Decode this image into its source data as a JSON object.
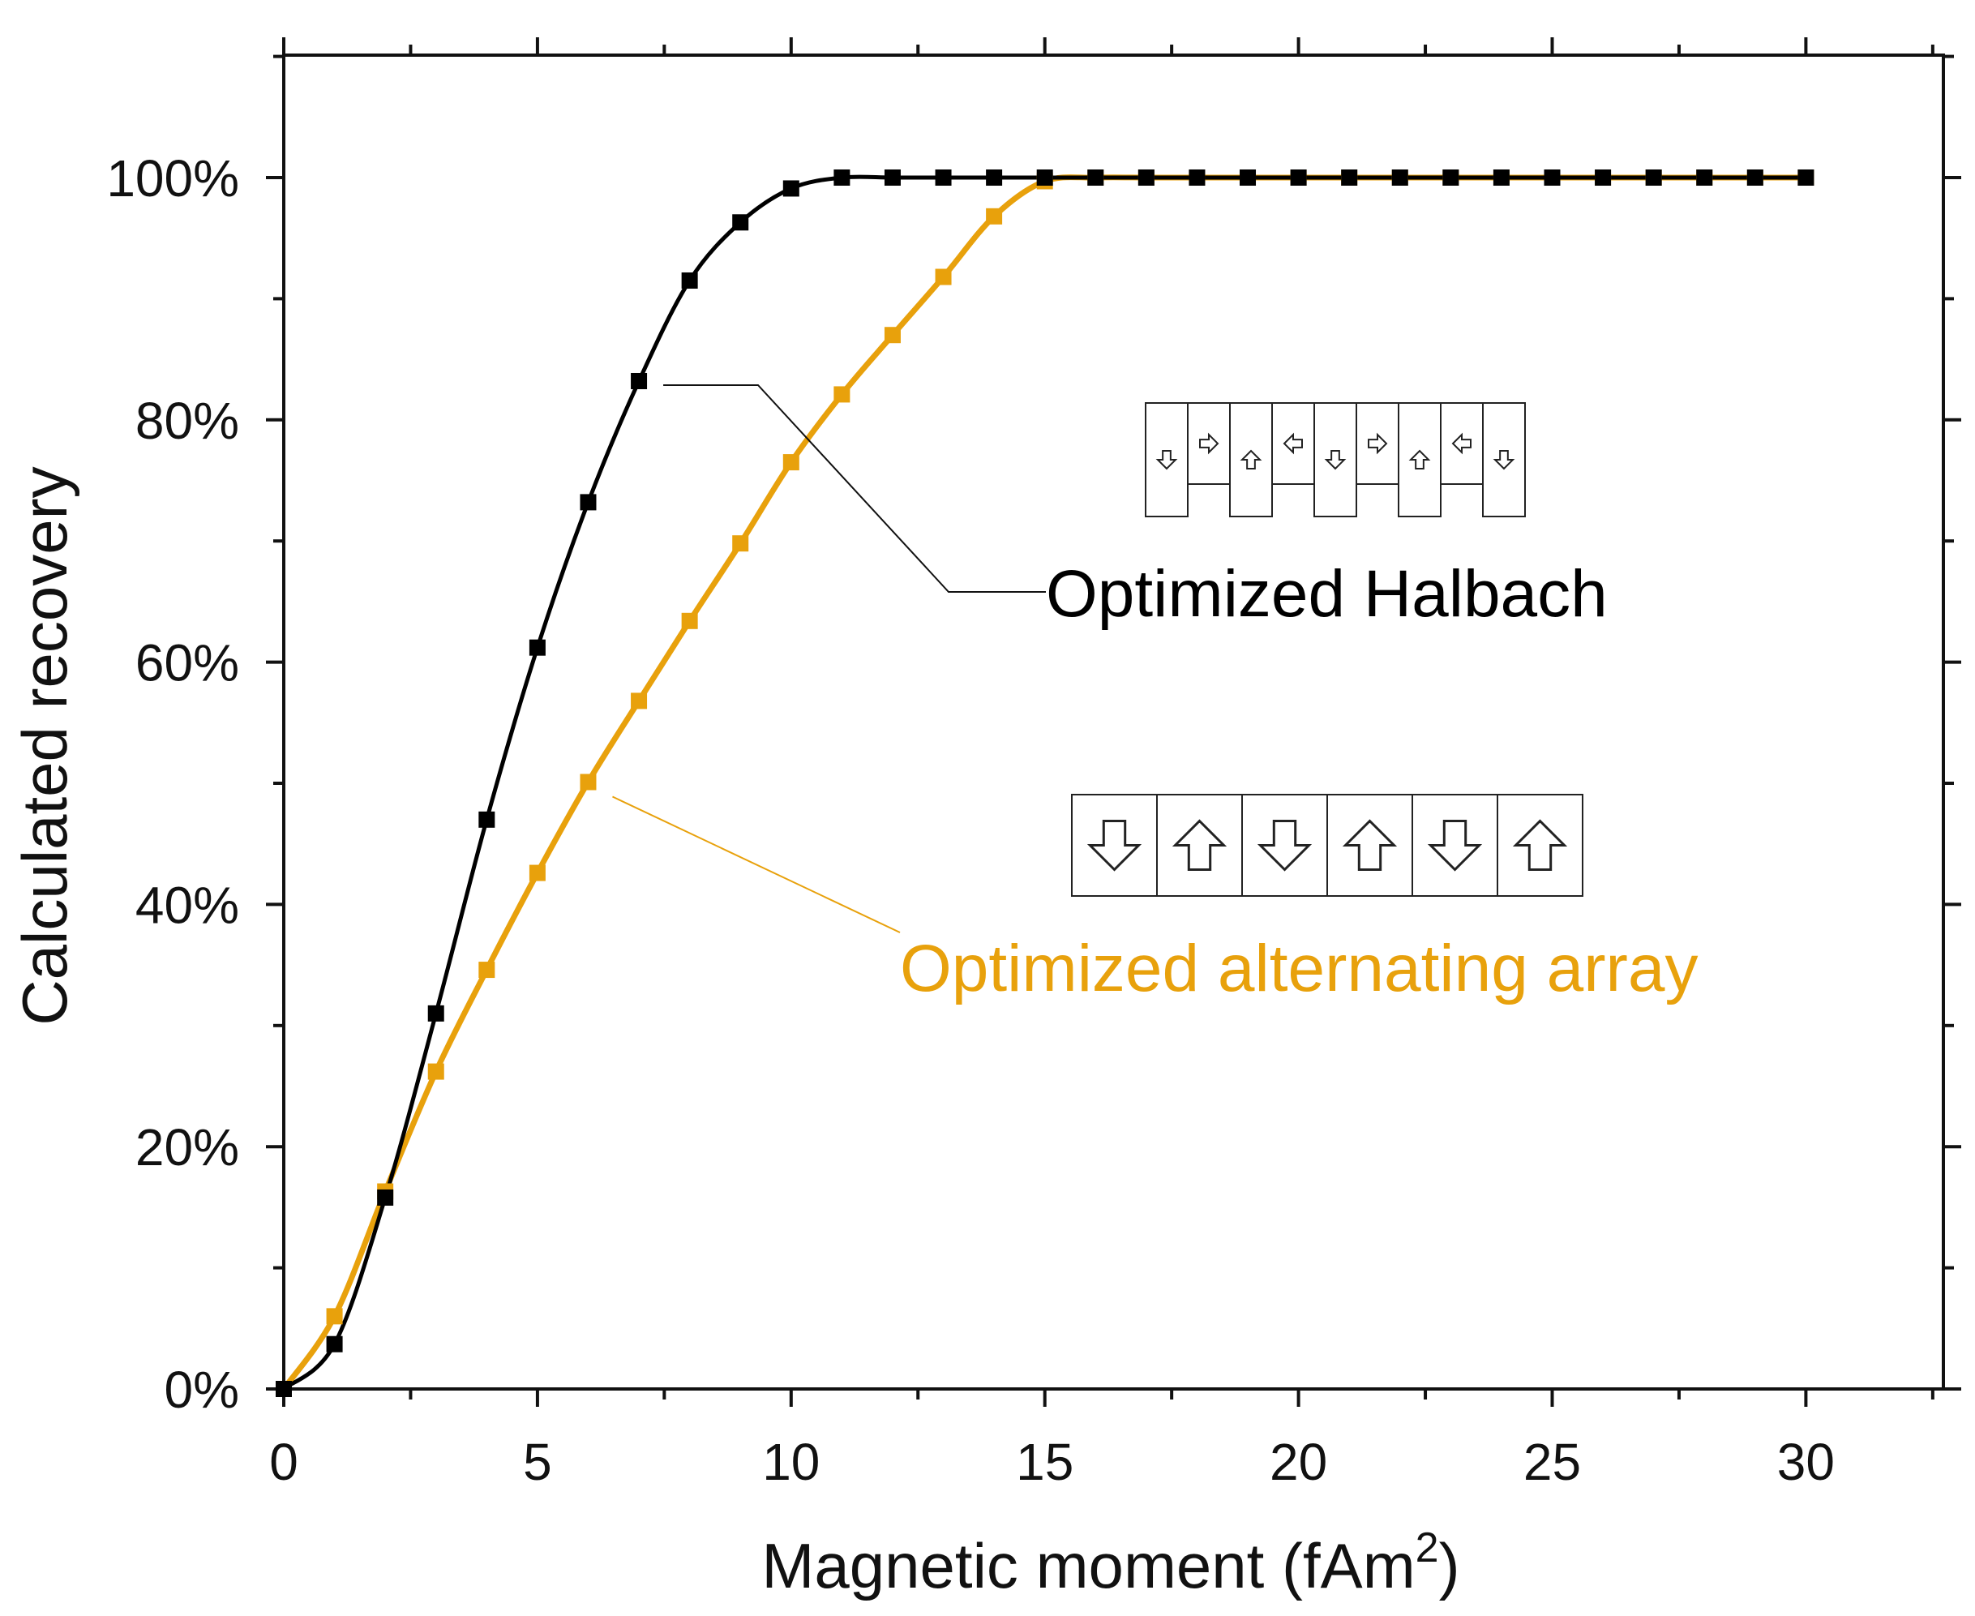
{
  "chart_data": {
    "type": "line",
    "xlabel": "Magnetic moment (fAm",
    "xlabel_sup": "2",
    "xlabel_end": ")",
    "ylabel": "Calculated recovery",
    "xlim": [
      0,
      32.7
    ],
    "ylim": [
      0,
      110
    ],
    "x_ticks": [
      0,
      5,
      10,
      15,
      20,
      25,
      30
    ],
    "x_tick_labels": [
      "0",
      "5",
      "10",
      "15",
      "20",
      "25",
      "30"
    ],
    "y_ticks": [
      0,
      20,
      40,
      60,
      80,
      100
    ],
    "y_tick_labels": [
      "0%",
      "20%",
      "40%",
      "60%",
      "80%",
      "100%"
    ],
    "grid": false,
    "series": [
      {
        "name": "Optimized Halbach",
        "color": "#000000",
        "x": [
          0,
          1,
          2,
          3,
          4,
          5,
          6,
          7,
          8,
          9,
          10,
          11,
          12,
          13,
          14,
          15,
          16,
          17,
          18,
          19,
          20,
          21,
          22,
          23,
          24,
          25,
          26,
          27,
          28,
          29,
          30
        ],
        "values": [
          0,
          3.7,
          15.8,
          31.0,
          47.0,
          61.2,
          73.2,
          83.2,
          91.5,
          96.3,
          99.1,
          100,
          100,
          100,
          100,
          100,
          100,
          100,
          100,
          100,
          100,
          100,
          100,
          100,
          100,
          100,
          100,
          100,
          100,
          100,
          100
        ]
      },
      {
        "name": "Optimized alternating array",
        "color": "#E8A10C",
        "x": [
          0,
          1,
          2,
          3,
          4,
          5,
          6,
          7,
          8,
          9,
          10,
          11,
          12,
          13,
          14,
          15,
          16,
          17,
          18,
          19,
          20,
          21,
          22,
          23,
          24,
          25,
          26,
          27,
          28,
          29,
          30
        ],
        "values": [
          0,
          6.0,
          16.3,
          26.2,
          34.6,
          42.6,
          50.1,
          56.8,
          63.4,
          69.8,
          76.5,
          82.1,
          87.0,
          91.8,
          96.8,
          99.7,
          100,
          100,
          100,
          100,
          100,
          100,
          100,
          100,
          100,
          100,
          100,
          100,
          100,
          100,
          100
        ]
      }
    ],
    "annotations": [
      {
        "text": "Optimized Halbach",
        "color": "#000000",
        "points_to_series": "Optimized Halbach",
        "at_x": 7
      },
      {
        "text": "Optimized alternating array",
        "color": "#E8A10C",
        "points_to_series": "Optimized alternating array",
        "at_x": 6
      }
    ],
    "insets": {
      "halbach_arrows": [
        "down",
        "right",
        "up",
        "left",
        "down",
        "right",
        "up",
        "left",
        "down"
      ],
      "alternating_arrows": [
        "down",
        "up",
        "down",
        "up",
        "down",
        "up"
      ]
    }
  }
}
